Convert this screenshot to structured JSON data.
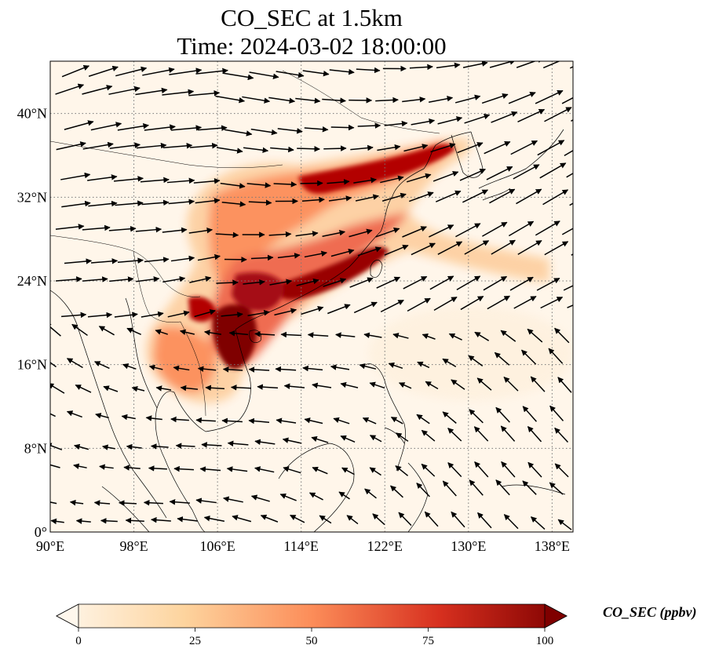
{
  "title": {
    "line1": "CO_SEC at 1.5km",
    "line2": "Time: 2024-03-02 18:00:00"
  },
  "map": {
    "projection": "PlateCarree",
    "lon_range": [
      90,
      140
    ],
    "lat_range": [
      0,
      45
    ],
    "gridlines": "dotted",
    "coastlines": true,
    "borders": true,
    "wind_vectors": true,
    "lon_ticks": [
      {
        "value": 90,
        "label": "90°E"
      },
      {
        "value": 98,
        "label": "98°E"
      },
      {
        "value": 106,
        "label": "106°E"
      },
      {
        "value": 114,
        "label": "114°E"
      },
      {
        "value": 122,
        "label": "122°E"
      },
      {
        "value": 130,
        "label": "130°E"
      },
      {
        "value": 138,
        "label": "138°E"
      }
    ],
    "lat_ticks": [
      {
        "value": 0,
        "label": "0°"
      },
      {
        "value": 8,
        "label": "8°N"
      },
      {
        "value": 16,
        "label": "16°N"
      },
      {
        "value": 24,
        "label": "24°N"
      },
      {
        "value": 32,
        "label": "32°N"
      },
      {
        "value": 40,
        "label": "40°N"
      }
    ]
  },
  "colorbar": {
    "label": "CO_SEC (ppbv)",
    "colormap": "OrRd",
    "range": [
      0,
      100
    ],
    "extend": "both",
    "ticks": [
      {
        "value": 0,
        "label": "0"
      },
      {
        "value": 25,
        "label": "25"
      },
      {
        "value": 50,
        "label": "50"
      },
      {
        "value": 75,
        "label": "75"
      },
      {
        "value": 100,
        "label": "100"
      }
    ],
    "colors": [
      "#fff7ec",
      "#fdd49e",
      "#fc8d59",
      "#d7301f",
      "#7f0000"
    ]
  }
}
